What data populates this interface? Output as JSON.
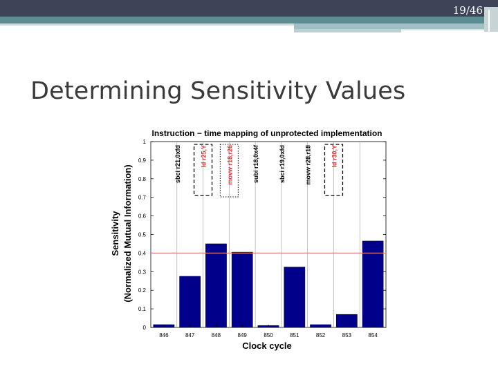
{
  "slide": {
    "page_number": "19/46",
    "title": "Determining Sensitivity Values"
  },
  "chart_data": {
    "type": "bar",
    "title": "Instruction − time mapping of unprotected implementation",
    "xlabel": "Clock cycle",
    "ylabel_line1": "Sensitivity",
    "ylabel_line2": "(Normalized Mutual Information)",
    "categories": [
      "846",
      "847",
      "848",
      "849",
      "850",
      "851",
      "852",
      "853",
      "854"
    ],
    "values": [
      0.015,
      0.275,
      0.45,
      0.405,
      0.01,
      0.325,
      0.015,
      0.07,
      0.465
    ],
    "ylim": [
      0,
      1
    ],
    "yticks": [
      "0",
      "0.1",
      "0.2",
      "0.3",
      "0.4",
      "0.5",
      "0.6",
      "0.7",
      "0.8",
      "0.9",
      "1"
    ],
    "threshold": 0.4,
    "instructions": [
      {
        "text": "sbci r21,0xfd",
        "color": "#000000",
        "box": "none"
      },
      {
        "text": "ld r25,Y",
        "color": "#e03030",
        "box": "dashed"
      },
      {
        "text": "movw r18,r26",
        "color": "#e03030",
        "box": "dotted"
      },
      {
        "text": "subi r18,0x4f",
        "color": "#000000",
        "box": "none"
      },
      {
        "text": "sbci r19,0xfd",
        "color": "#000000",
        "box": "none"
      },
      {
        "text": "movw r28,r18",
        "color": "#000000",
        "box": "none"
      },
      {
        "text": "ld r30,Y",
        "color": "#e03030",
        "box": "dashed"
      }
    ],
    "colors": {
      "bar": "#00008b",
      "threshold": "#e08080",
      "grid": "#a8a8a8"
    }
  }
}
